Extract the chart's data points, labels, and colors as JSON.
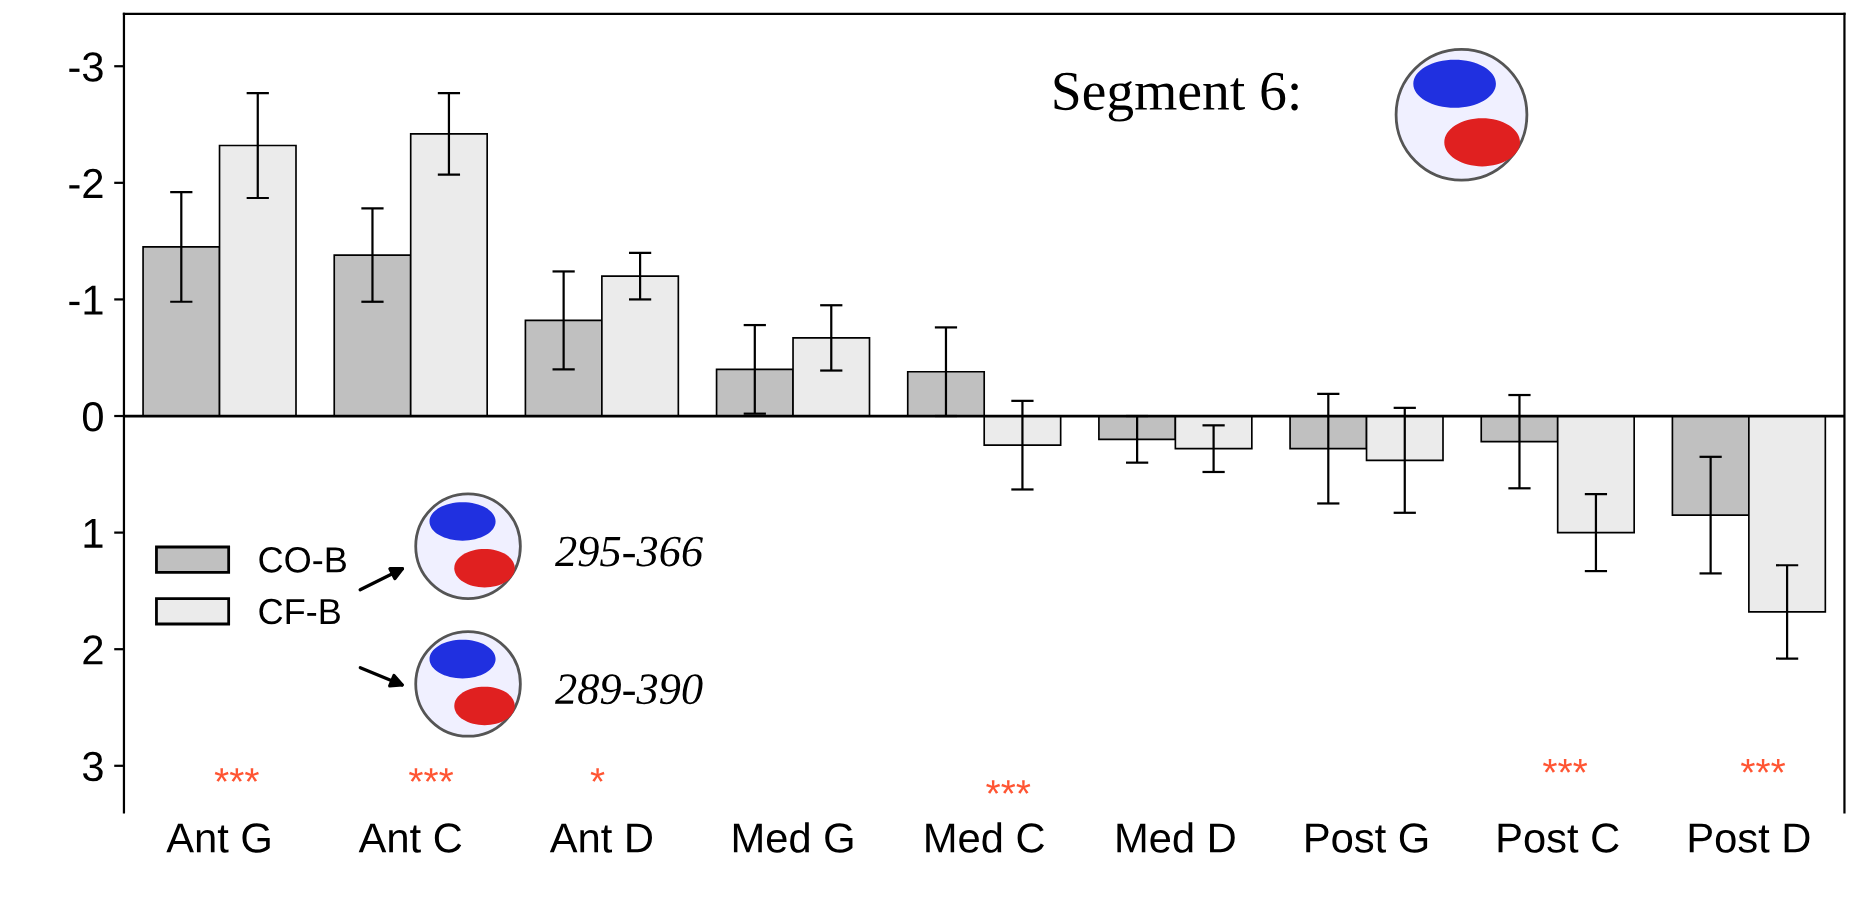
{
  "chart_data": {
    "type": "bar",
    "categories": [
      "Ant G",
      "Ant C",
      "Ant D",
      "Med G",
      "Med C",
      "Med D",
      "Post G",
      "Post C",
      "Post D"
    ],
    "series": [
      {
        "name": "CO-B",
        "color": "#c0c0c0",
        "values": [
          -1.45,
          -1.38,
          -0.82,
          -0.4,
          -0.38,
          0.2,
          0.28,
          0.22,
          0.85
        ],
        "errors": [
          0.47,
          0.4,
          0.42,
          0.38,
          0.38,
          0.2,
          0.47,
          0.4,
          0.5
        ]
      },
      {
        "name": "CF-B",
        "color": "#ebebeb",
        "values": [
          -2.32,
          -2.42,
          -1.2,
          -0.67,
          0.25,
          0.28,
          0.38,
          1.0,
          1.68
        ],
        "errors": [
          0.45,
          0.35,
          0.2,
          0.28,
          0.38,
          0.2,
          0.45,
          0.33,
          0.4
        ]
      }
    ],
    "ylim": [
      3.4,
      -3.45
    ],
    "yticks": [
      -3,
      -2,
      -1,
      0,
      1,
      2,
      3
    ],
    "ref_lines": [
      {
        "axis": "y",
        "value": 0,
        "color": "#000000"
      }
    ],
    "annotations": [
      "Segment 6:",
      "295-366",
      "289-390",
      "***",
      "***",
      "*",
      "***",
      "***",
      "***"
    ],
    "legend": "left",
    "grid": false
  }
}
